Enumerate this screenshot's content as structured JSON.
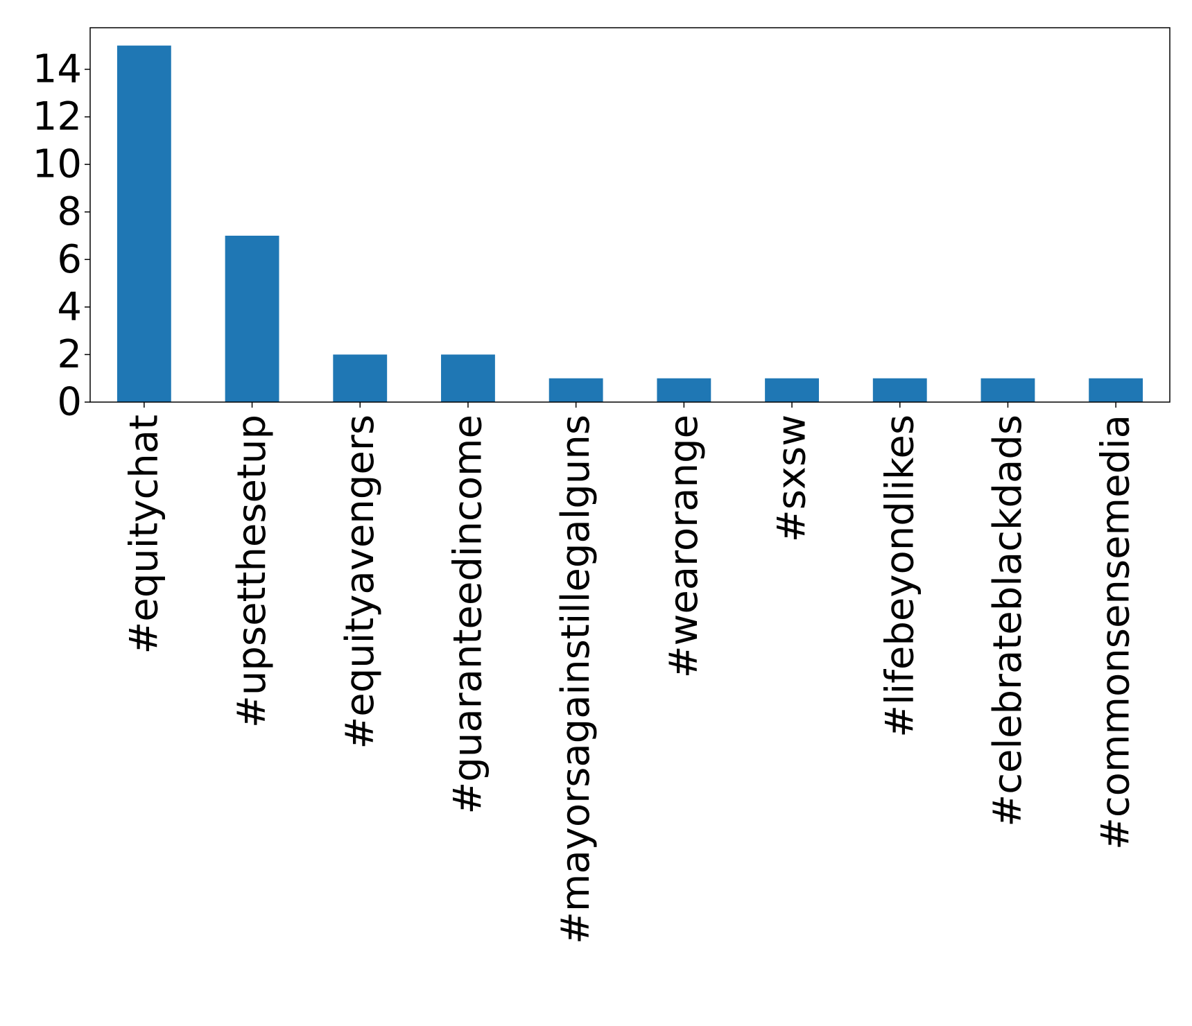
{
  "chart_data": {
    "type": "bar",
    "title": "",
    "xlabel": "",
    "ylabel": "",
    "categories": [
      "#equitychat",
      "#upsetthesetup",
      "#equityavengers",
      "#guaranteedincome",
      "#mayorsagainstillegalguns",
      "#wearorange",
      "#sxsw",
      "#lifebeyondlikes",
      "#celebrateblackdads",
      "#commonsensemedia"
    ],
    "values": [
      15,
      7,
      2,
      2,
      1,
      1,
      1,
      1,
      1,
      1
    ],
    "ylim": [
      0,
      15.75
    ],
    "yticks": [
      0,
      2,
      4,
      6,
      8,
      10,
      12,
      14
    ],
    "grid": false,
    "legend": "none",
    "bar_color": "#1f77b4"
  }
}
